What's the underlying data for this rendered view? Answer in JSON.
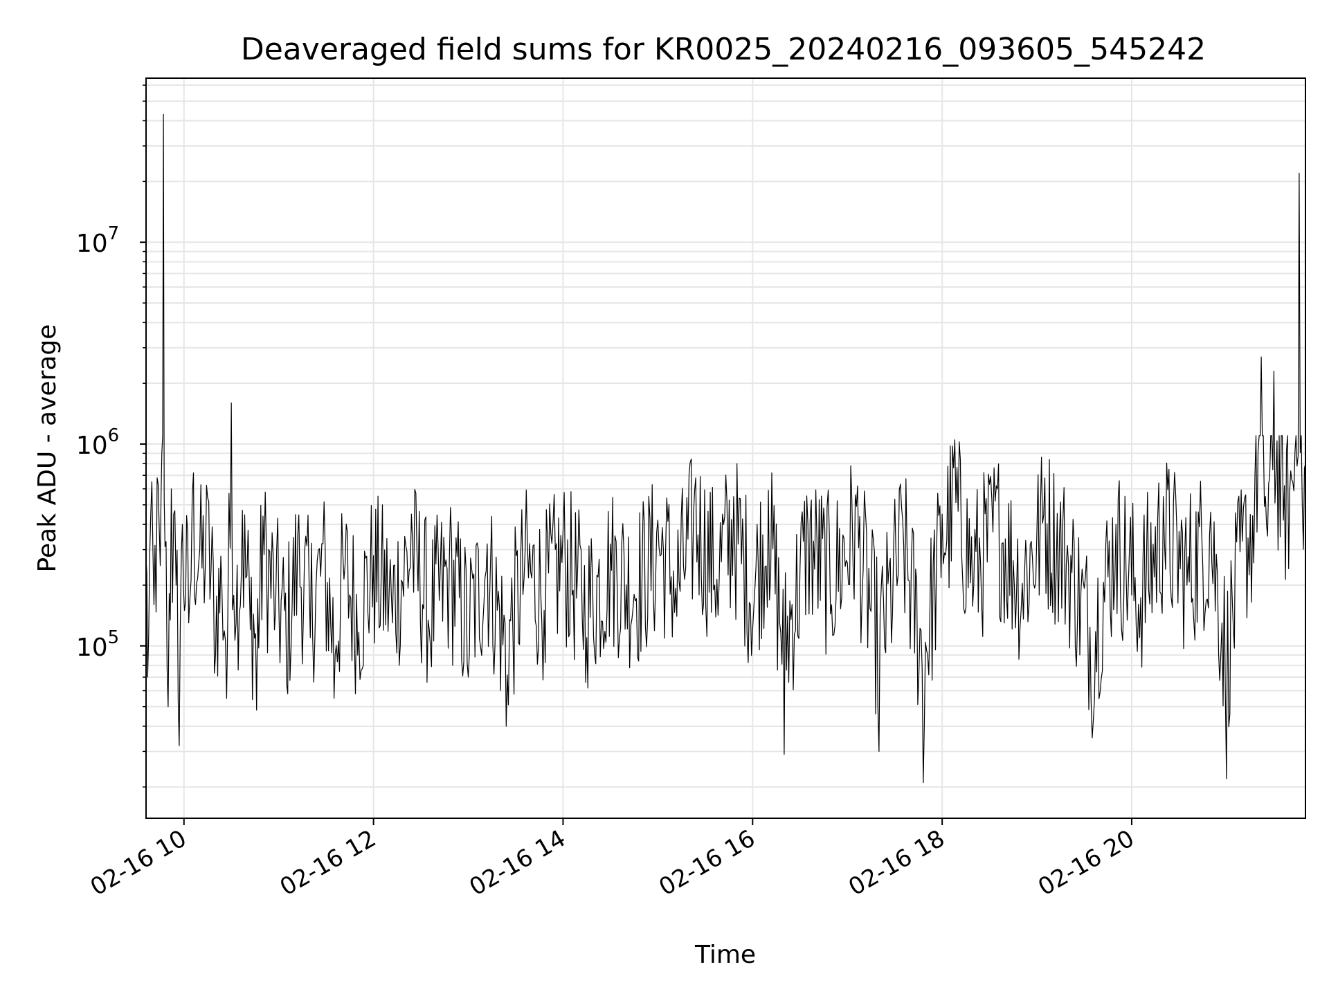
{
  "chart_data": {
    "type": "line",
    "title": "Deaveraged field sums for KR0025_20240216_093605_545242",
    "xlabel": "Time",
    "ylabel": "Peak ADU - average",
    "x_tick_labels": [
      "02-16 10",
      "02-16 12",
      "02-16 14",
      "02-16 16",
      "02-16 18",
      "02-16 20"
    ],
    "x_ticks_hours": [
      10,
      12,
      14,
      16,
      18,
      20
    ],
    "y_tick_labels": [
      {
        "base": "10",
        "exp": "5",
        "value": 100000
      },
      {
        "base": "10",
        "exp": "6",
        "value": 1000000
      },
      {
        "base": "10",
        "exp": "7",
        "value": 10000000
      }
    ],
    "y_scale": "log",
    "xlim": [
      "2024-02-16 09:36",
      "2024-02-16 21:50"
    ],
    "ylim": [
      14000,
      65000000
    ],
    "grid": true,
    "line_color": "#000000",
    "grid_color": "#e6e6e6",
    "series": [
      {
        "points": [
          [
            "2024-02-16 09:36",
            270000
          ],
          [
            "2024-02-16 09:37",
            70000
          ],
          [
            "2024-02-16 09:39",
            450000
          ],
          [
            "2024-02-16 09:41",
            160000
          ],
          [
            "2024-02-16 09:43",
            680000
          ],
          [
            "2024-02-16 09:45",
            250000
          ],
          [
            "2024-02-16 09:46",
            900000
          ],
          [
            "2024-02-16 09:47",
            43000000
          ],
          [
            "2024-02-16 09:48",
            310000
          ],
          [
            "2024-02-16 09:50",
            50000
          ],
          [
            "2024-02-16 09:52",
            600000
          ],
          [
            "2024-02-16 09:55",
            200000
          ],
          [
            "2024-02-16 09:57",
            32000
          ],
          [
            "2024-02-16 09:59",
            400000
          ],
          [
            "2024-02-16 10:03",
            130000
          ],
          [
            "2024-02-16 10:06",
            720000
          ],
          [
            "2024-02-16 10:10",
            300000
          ],
          [
            "2024-02-16 10:15",
            540000
          ],
          [
            "2024-02-16 10:20",
            90000
          ],
          [
            "2024-02-16 10:24",
            200000
          ],
          [
            "2024-02-16 10:27",
            55000
          ],
          [
            "2024-02-16 10:30",
            1600000
          ],
          [
            "2024-02-16 10:33",
            130000
          ],
          [
            "2024-02-16 10:37",
            470000
          ],
          [
            "2024-02-16 10:42",
            120000
          ],
          [
            "2024-02-16 10:46",
            48000
          ],
          [
            "2024-02-16 10:50",
            440000
          ],
          [
            "2024-02-16 10:58",
            150000
          ],
          [
            "2024-02-16 11:05",
            65000
          ],
          [
            "2024-02-16 11:12",
            350000
          ],
          [
            "2024-02-16 11:20",
            110000
          ],
          [
            "2024-02-16 11:28",
            320000
          ],
          [
            "2024-02-16 11:35",
            55000
          ],
          [
            "2024-02-16 11:42",
            250000
          ],
          [
            "2024-02-16 11:50",
            90000
          ],
          [
            "2024-02-16 12:00",
            280000
          ],
          [
            "2024-02-16 12:12",
            130000
          ],
          [
            "2024-02-16 12:24",
            450000
          ],
          [
            "2024-02-16 12:36",
            100000
          ],
          [
            "2024-02-16 12:48",
            260000
          ],
          [
            "2024-02-16 13:00",
            70000
          ],
          [
            "2024-02-16 13:12",
            320000
          ],
          [
            "2024-02-16 13:24",
            40000
          ],
          [
            "2024-02-16 13:36",
            300000
          ],
          [
            "2024-02-16 13:48",
            150000
          ],
          [
            "2024-02-16 14:00",
            380000
          ],
          [
            "2024-02-16 14:15",
            110000
          ],
          [
            "2024-02-16 14:30",
            320000
          ],
          [
            "2024-02-16 14:45",
            180000
          ],
          [
            "2024-02-16 15:00",
            420000
          ],
          [
            "2024-02-16 15:12",
            140000
          ],
          [
            "2024-02-16 15:24",
            680000
          ],
          [
            "2024-02-16 15:36",
            200000
          ],
          [
            "2024-02-16 15:48",
            550000
          ],
          [
            "2024-02-16 16:00",
            120000
          ],
          [
            "2024-02-16 16:10",
            590000
          ],
          [
            "2024-02-16 16:20",
            29000
          ],
          [
            "2024-02-16 16:35",
            400000
          ],
          [
            "2024-02-16 16:50",
            160000
          ],
          [
            "2024-02-16 17:05",
            560000
          ],
          [
            "2024-02-16 17:20",
            30000
          ],
          [
            "2024-02-16 17:35",
            420000
          ],
          [
            "2024-02-16 17:48",
            21000
          ],
          [
            "2024-02-16 18:00",
            450000
          ],
          [
            "2024-02-16 18:08",
            1050000
          ],
          [
            "2024-02-16 18:20",
            200000
          ],
          [
            "2024-02-16 18:35",
            600000
          ],
          [
            "2024-02-16 18:50",
            150000
          ],
          [
            "2024-02-16 19:05",
            680000
          ],
          [
            "2024-02-16 19:20",
            250000
          ],
          [
            "2024-02-16 19:35",
            35000
          ],
          [
            "2024-02-16 19:50",
            400000
          ],
          [
            "2024-02-16 20:05",
            110000
          ],
          [
            "2024-02-16 20:20",
            550000
          ],
          [
            "2024-02-16 20:35",
            200000
          ],
          [
            "2024-02-16 20:50",
            460000
          ],
          [
            "2024-02-16 21:00",
            22000
          ],
          [
            "2024-02-16 21:10",
            330000
          ],
          [
            "2024-02-16 21:18",
            700000
          ],
          [
            "2024-02-16 21:22",
            2700000
          ],
          [
            "2024-02-16 21:26",
            350000
          ],
          [
            "2024-02-16 21:30",
            2300000
          ],
          [
            "2024-02-16 21:36",
            420000
          ],
          [
            "2024-02-16 21:42",
            650000
          ],
          [
            "2024-02-16 21:46",
            22000000
          ],
          [
            "2024-02-16 21:48",
            500000
          ],
          [
            "2024-02-16 21:50",
            800000
          ]
        ]
      }
    ]
  }
}
